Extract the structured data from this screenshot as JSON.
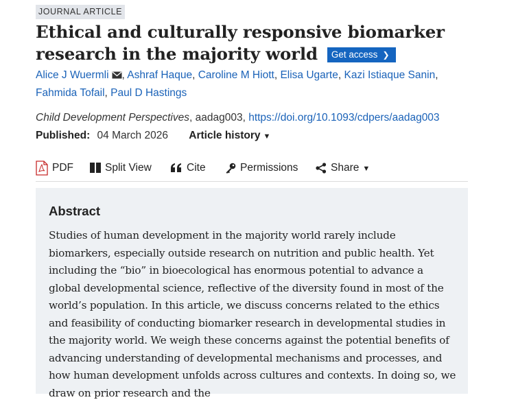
{
  "article": {
    "type_badge": "JOURNAL ARTICLE",
    "title": "Ethical and culturally responsive biomarker research in the majority world",
    "get_access_label": "Get access",
    "authors": [
      "Alice J Wuermli",
      "Ashraf Haque",
      "Caroline M Hiott",
      "Elisa Ugarte",
      "Kazi Istiaque Sanin",
      "Fahmida Tofail",
      "Paul D Hastings"
    ],
    "journal": "Child Development Perspectives",
    "article_id": ", aadag003, ",
    "doi": "https://doi.org/10.1093/cdpers/aadag003",
    "published_label": "Published:",
    "published_date": "04 March 2026",
    "article_history_label": "Article history"
  },
  "toolbar": {
    "pdf": "PDF",
    "split_view": "Split View",
    "cite": "Cite",
    "permissions": "Permissions",
    "share": "Share"
  },
  "abstract": {
    "heading": "Abstract",
    "text": "Studies of human development in the majority world rarely include biomarkers, especially outside research on nutrition and public health. Yet including the “bio” in bioecological has enormous potential to advance a global developmental science, reflective of the diversity found in most of the world’s population. In this article, we discuss concerns related to the ethics and feasibility of conducting biomarker research in developmental studies in the majority world. We weigh these concerns against the potential benefits of advancing understanding of developmental mechanisms and processes, and how human development unfolds across cultures and contexts. In doing so, we draw on prior research and the"
  },
  "colors": {
    "link": "#1a62b8",
    "button": "#1565c0",
    "abstract_bg": "#eef1f4",
    "pdf_icon": "#c62828"
  }
}
